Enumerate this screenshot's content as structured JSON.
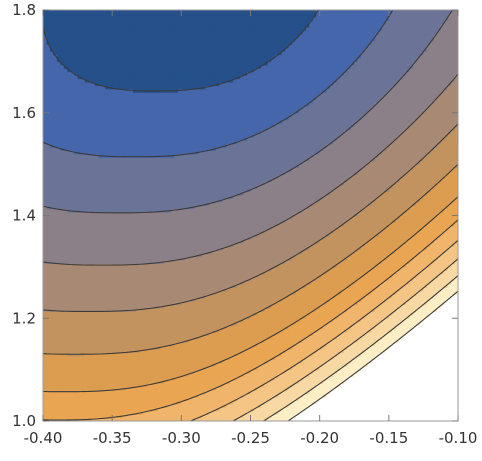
{
  "chart_data": {
    "type": "contour",
    "title": "",
    "xlabel": "",
    "ylabel": "",
    "xlim": [
      -0.4,
      -0.1
    ],
    "ylim": [
      1.0,
      1.8
    ],
    "x_ticks": [
      "-0.40",
      "-0.35",
      "-0.30",
      "-0.25",
      "-0.20",
      "-0.15",
      "-0.10"
    ],
    "y_ticks": [
      "1.0",
      "1.2",
      "1.4",
      "1.6",
      "1.8"
    ],
    "grid": false,
    "legend": "none",
    "colors": {
      "frame": "#999999",
      "contour_line": "#3a3a3a",
      "fill_levels": [
        "#25508a",
        "#4566aa",
        "#6b7496",
        "#8c8088",
        "#a88a74",
        "#c3935f",
        "#dc9d50",
        "#eaa552",
        "#f0b46a",
        "#f5c585",
        "#f9d9a3",
        "#fdeec6",
        "#ffffff"
      ]
    }
  }
}
